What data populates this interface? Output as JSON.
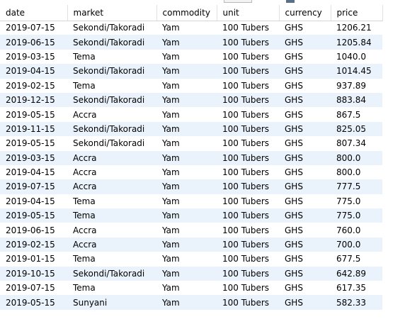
{
  "columns": [
    "date",
    "market",
    "commodity",
    "unit",
    "currency",
    "price"
  ],
  "rows": [
    [
      "2019-07-15",
      "Sekondi/Takoradi",
      "Yam",
      "100 Tubers",
      "GHS",
      "1206.21"
    ],
    [
      "2019-06-15",
      "Sekondi/Takoradi",
      "Yam",
      "100 Tubers",
      "GHS",
      "1205.84"
    ],
    [
      "2019-03-15",
      "Tema",
      "Yam",
      "100 Tubers",
      "GHS",
      "1040.0"
    ],
    [
      "2019-04-15",
      "Sekondi/Takoradi",
      "Yam",
      "100 Tubers",
      "GHS",
      "1014.45"
    ],
    [
      "2019-02-15",
      "Tema",
      "Yam",
      "100 Tubers",
      "GHS",
      "937.89"
    ],
    [
      "2019-12-15",
      "Sekondi/Takoradi",
      "Yam",
      "100 Tubers",
      "GHS",
      "883.84"
    ],
    [
      "2019-05-15",
      "Accra",
      "Yam",
      "100 Tubers",
      "GHS",
      "867.5"
    ],
    [
      "2019-11-15",
      "Sekondi/Takoradi",
      "Yam",
      "100 Tubers",
      "GHS",
      "825.05"
    ],
    [
      "2019-05-15",
      "Sekondi/Takoradi",
      "Yam",
      "100 Tubers",
      "GHS",
      "807.34"
    ],
    [
      "2019-03-15",
      "Accra",
      "Yam",
      "100 Tubers",
      "GHS",
      "800.0"
    ],
    [
      "2019-04-15",
      "Accra",
      "Yam",
      "100 Tubers",
      "GHS",
      "800.0"
    ],
    [
      "2019-07-15",
      "Accra",
      "Yam",
      "100 Tubers",
      "GHS",
      "777.5"
    ],
    [
      "2019-04-15",
      "Tema",
      "Yam",
      "100 Tubers",
      "GHS",
      "775.0"
    ],
    [
      "2019-05-15",
      "Tema",
      "Yam",
      "100 Tubers",
      "GHS",
      "775.0"
    ],
    [
      "2019-06-15",
      "Accra",
      "Yam",
      "100 Tubers",
      "GHS",
      "760.0"
    ],
    [
      "2019-02-15",
      "Accra",
      "Yam",
      "100 Tubers",
      "GHS",
      "700.0"
    ],
    [
      "2019-01-15",
      "Tema",
      "Yam",
      "100 Tubers",
      "GHS",
      "677.5"
    ],
    [
      "2019-10-15",
      "Sekondi/Takoradi",
      "Yam",
      "100 Tubers",
      "GHS",
      "642.89"
    ],
    [
      "2019-07-15",
      "Tema",
      "Yam",
      "100 Tubers",
      "GHS",
      "617.35"
    ],
    [
      "2019-05-15",
      "Sunyani",
      "Yam",
      "100 Tubers",
      "GHS",
      "582.33"
    ]
  ],
  "colors": {
    "row_alt": "#eaf2fb",
    "row": "#ffffff",
    "header_border": "#e1e1e1"
  }
}
